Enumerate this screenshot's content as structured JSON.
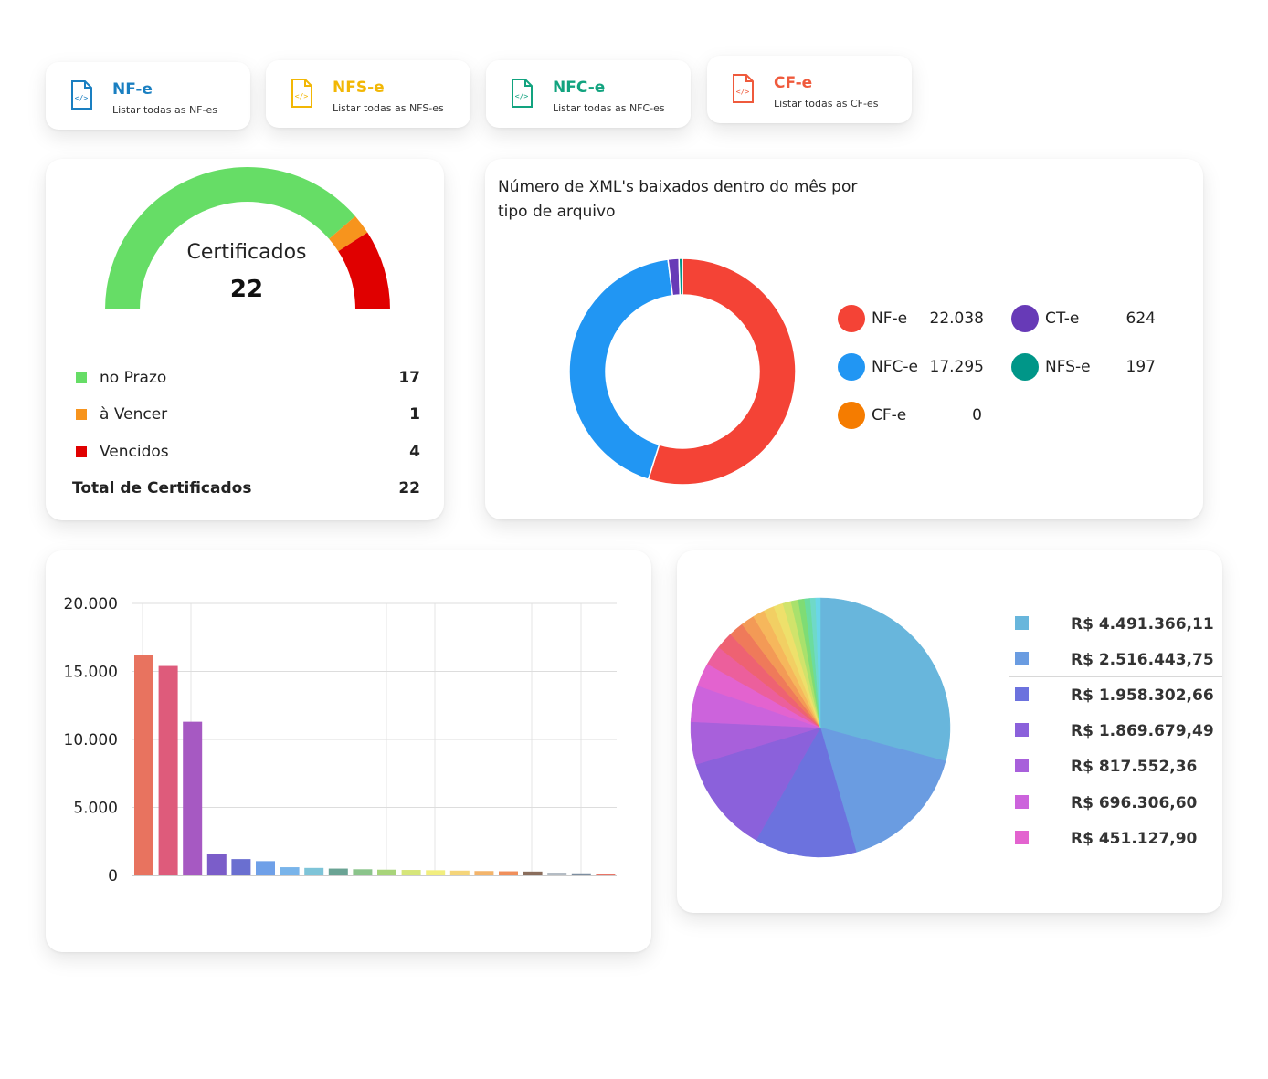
{
  "doc_cards": [
    {
      "title": "NF-e",
      "subtitle": "Listar todas as NF-es",
      "color": "#1a7fc1",
      "icon": "xml-file-icon"
    },
    {
      "title": "NFS-e",
      "subtitle": "Listar todas as NFS-es",
      "color": "#f2b705",
      "icon": "xml-file-icon"
    },
    {
      "title": "NFC-e",
      "subtitle": "Listar todas as NFC-es",
      "color": "#12a37f",
      "icon": "xml-file-icon"
    },
    {
      "title": "CF-e",
      "subtitle": "Listar todas as CF-es",
      "color": "#ef5a3c",
      "icon": "xml-file-icon"
    }
  ],
  "certificates": {
    "title": "Certificados",
    "total": "22",
    "rows": [
      {
        "label": "no Prazo",
        "value": "17",
        "color": "#66dd66"
      },
      {
        "label": "à Vencer",
        "value": "1",
        "color": "#f7941d"
      },
      {
        "label": "Vencidos",
        "value": "4",
        "color": "#e00000"
      }
    ],
    "total_label": "Total de Certificados",
    "total_value": "22",
    "gauge_values": [
      17,
      1,
      4
    ]
  },
  "xml_chart": {
    "title": "Número de XML's baixados dentro do mês por tipo de arquivo",
    "legend": [
      {
        "label": "NF-e",
        "value": "22.038",
        "color": "#f44336"
      },
      {
        "label": "CT-e",
        "value": "624",
        "color": "#673ab7"
      },
      {
        "label": "NFC-e",
        "value": "17.295",
        "color": "#2196f3"
      },
      {
        "label": "NFS-e",
        "value": "197",
        "color": "#009688"
      },
      {
        "label": "CF-e",
        "value": "0",
        "color": "#f57c00"
      }
    ]
  },
  "chart_data": [
    {
      "type": "pie",
      "labels": [
        "NF-e",
        "NFC-e",
        "CT-e",
        "NFS-e",
        "CF-e"
      ],
      "values": [
        22038,
        17295,
        624,
        197,
        0
      ],
      "colors": [
        "#f44336",
        "#2196f3",
        "#673ab7",
        "#009688",
        "#f57c00"
      ]
    },
    {
      "type": "bar",
      "ylim": [
        0,
        20000
      ],
      "ytick_labels": [
        "20.000",
        "15.000",
        "10.000",
        "5.000",
        "0"
      ],
      "ytick_values": [
        20000,
        15000,
        10000,
        5000,
        0
      ],
      "values": [
        16200,
        15400,
        11300,
        1600,
        1200,
        1050,
        600,
        550,
        500,
        450,
        420,
        400,
        380,
        350,
        320,
        300,
        280,
        200,
        150,
        130
      ],
      "colors": [
        "#e8735f",
        "#de5b7b",
        "#a659c2",
        "#7b5dc9",
        "#6a6fd0",
        "#6fa0e8",
        "#79b4ea",
        "#7ec4d8",
        "#6aa394",
        "#8bc48b",
        "#a8d47a",
        "#d6e67a",
        "#f2ee7e",
        "#f5d57a",
        "#f3b46b",
        "#f08f5b",
        "#8a6d5c",
        "#b4bcc4",
        "#7d8ea0",
        "#e86b5c"
      ]
    },
    {
      "type": "pie",
      "values": [
        4491366.11,
        2516443.75,
        1958302.66,
        1869679.49,
        817552.36,
        696306.6,
        451127.9,
        380000,
        330000,
        290000,
        260000,
        230000,
        200000,
        180000,
        160000,
        140000,
        120000,
        110000,
        100000,
        90000
      ],
      "colors": [
        "#68b6dc",
        "#6a9ce1",
        "#6c72de",
        "#8b61db",
        "#a860db",
        "#cc63dc",
        "#e363cf",
        "#ec5f9c",
        "#ee6272",
        "#ef7a5a",
        "#f39a56",
        "#f6b75c",
        "#f2cf63",
        "#eee06b",
        "#d1e36b",
        "#a9e16c",
        "#7fdc74",
        "#6bdc9f",
        "#6fd9c8",
        "#6ad6e8"
      ]
    }
  ],
  "pie_legend": [
    {
      "value": "R$ 4.491.366,11",
      "color": "#68b6dc"
    },
    {
      "value": "R$ 2.516.443,75",
      "color": "#6a9ce1"
    },
    {
      "value": "R$ 1.958.302,66",
      "color": "#6c72de"
    },
    {
      "value": "R$ 1.869.679,49",
      "color": "#8b61db"
    },
    {
      "value": "R$ 817.552,36",
      "color": "#a860db"
    },
    {
      "value": "R$ 696.306,60",
      "color": "#cc63dc"
    },
    {
      "value": "R$ 451.127,90",
      "color": "#e363cf"
    }
  ]
}
